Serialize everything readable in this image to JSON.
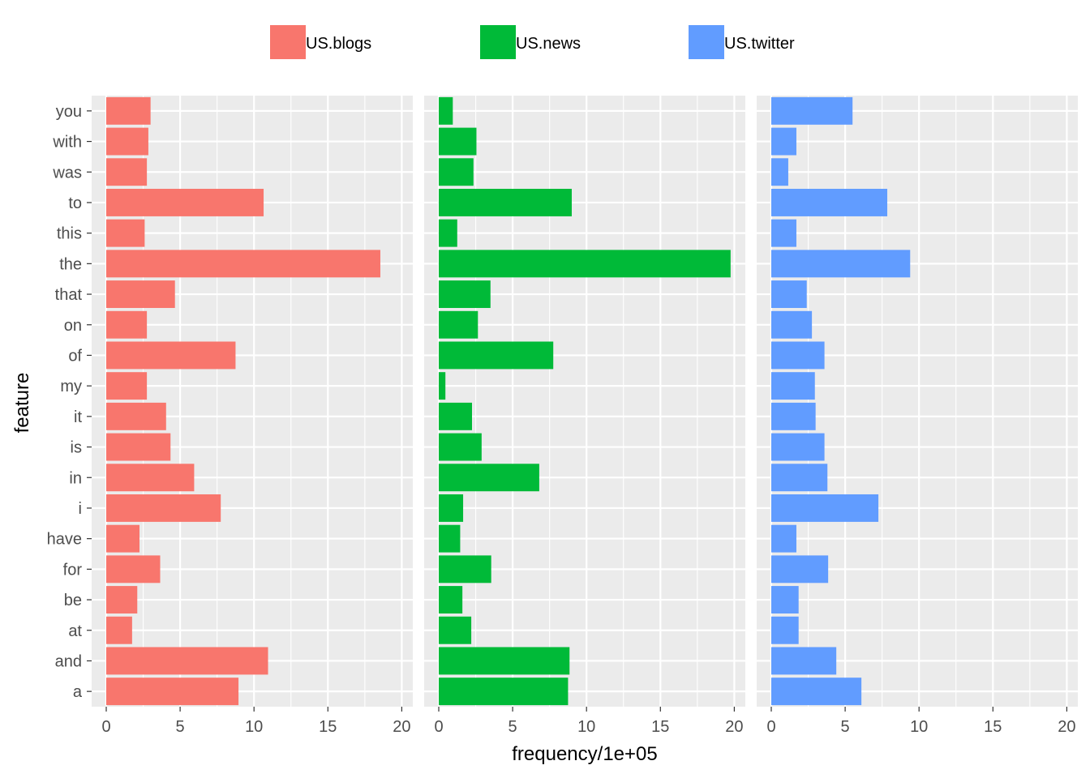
{
  "chart_data": {
    "type": "bar",
    "orientation": "horizontal",
    "facets": "side-by-side",
    "xlabel": "frequency/1e+05",
    "ylabel": "feature",
    "xlim": [
      0,
      20
    ],
    "x_ticks": [
      "0",
      "5",
      "10",
      "15",
      "20"
    ],
    "legend_position": "top",
    "grid": true,
    "categories": [
      "a",
      "and",
      "at",
      "be",
      "for",
      "have",
      "i",
      "in",
      "is",
      "it",
      "my",
      "of",
      "on",
      "that",
      "the",
      "this",
      "to",
      "was",
      "with",
      "you"
    ],
    "series": [
      {
        "name": "US.blogs",
        "color": "#F8766D",
        "values": [
          8.95,
          10.95,
          1.75,
          2.1,
          3.65,
          2.25,
          7.75,
          5.95,
          4.35,
          4.05,
          2.75,
          8.75,
          2.75,
          4.65,
          18.55,
          2.6,
          10.65,
          2.75,
          2.85,
          3.0
        ]
      },
      {
        "name": "US.news",
        "color": "#00BA38",
        "values": [
          8.75,
          8.85,
          2.2,
          1.6,
          3.55,
          1.45,
          1.65,
          6.8,
          2.9,
          2.25,
          0.45,
          7.75,
          2.65,
          3.5,
          19.75,
          1.25,
          9.0,
          2.35,
          2.55,
          0.95
        ]
      },
      {
        "name": "US.twitter",
        "color": "#619CFF",
        "values": [
          6.1,
          4.4,
          1.85,
          1.85,
          3.85,
          1.7,
          7.25,
          3.8,
          3.6,
          3.0,
          2.95,
          3.6,
          2.75,
          2.4,
          9.4,
          1.7,
          7.85,
          1.15,
          1.7,
          5.5
        ]
      }
    ]
  }
}
